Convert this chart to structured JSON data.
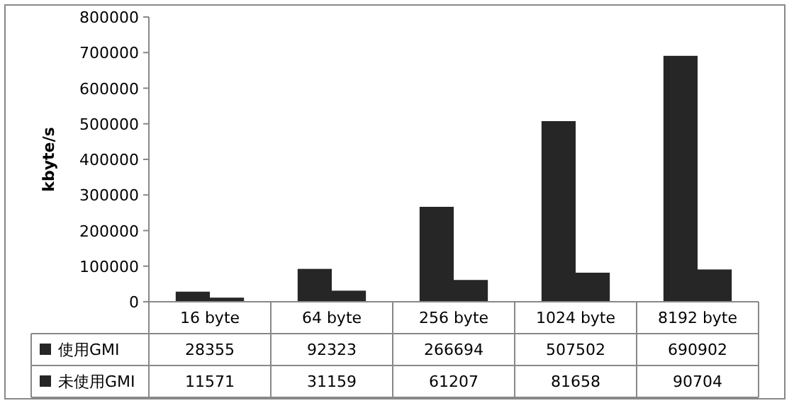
{
  "chart_data": {
    "type": "bar",
    "ylabel": "kbyte/s",
    "categories": [
      "16 byte",
      "64 byte",
      "256 byte",
      "1024 byte",
      "8192 byte"
    ],
    "series": [
      {
        "name": "使用GMI",
        "color": "#262626",
        "values": [
          28355,
          92323,
          266694,
          507502,
          690902
        ]
      },
      {
        "name": "未使用GMI",
        "color": "#262626",
        "values": [
          11571,
          31159,
          61207,
          81658,
          90704
        ]
      }
    ],
    "ylim": [
      0,
      800000
    ],
    "yticks": [
      0,
      100000,
      200000,
      300000,
      400000,
      500000,
      600000,
      700000,
      800000
    ],
    "data_labels": true,
    "legend": "bottom"
  }
}
